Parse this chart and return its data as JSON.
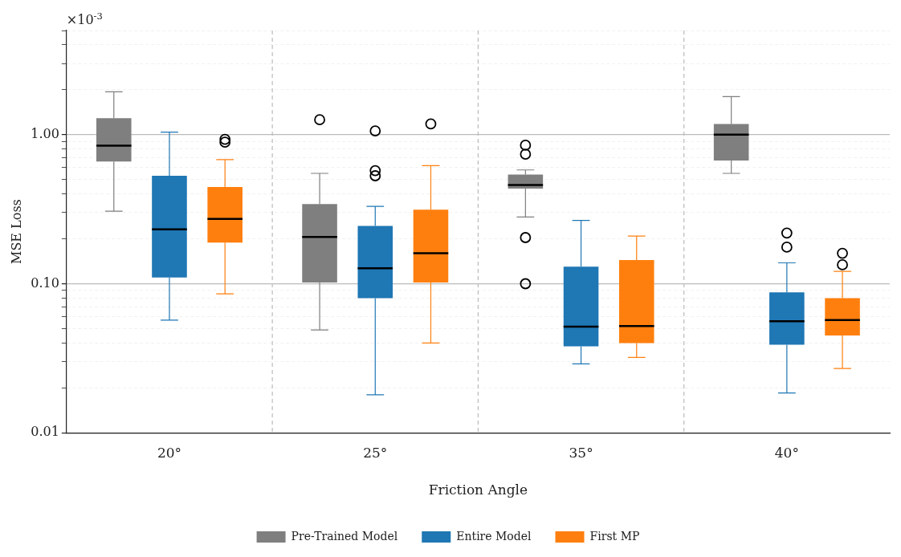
{
  "chart_data": {
    "type": "box",
    "xlabel": "Friction Angle",
    "ylabel": "MSE Loss",
    "annotations": [
      "×10$^{-3}$"
    ],
    "categories": [
      "20°",
      "25°",
      "35°",
      "40°"
    ],
    "log": "y",
    "ylim": [
      0.01,
      5
    ],
    "yticks": [
      {
        "value": 0.01,
        "label": "0.01"
      },
      {
        "value": 0.02,
        "label": null
      },
      {
        "value": 0.03,
        "label": null
      },
      {
        "value": 0.04,
        "label": null
      },
      {
        "value": 0.05,
        "label": null
      },
      {
        "value": 0.06,
        "label": null
      },
      {
        "value": 0.07,
        "label": null
      },
      {
        "value": 0.08,
        "label": null
      },
      {
        "value": 0.09,
        "label": null
      },
      {
        "value": 0.1,
        "label": "0.10"
      },
      {
        "value": 0.2,
        "label": null
      },
      {
        "value": 0.3,
        "label": null
      },
      {
        "value": 0.4,
        "label": null
      },
      {
        "value": 0.5,
        "label": null
      },
      {
        "value": 0.6,
        "label": null
      },
      {
        "value": 0.7,
        "label": null
      },
      {
        "value": 0.8,
        "label": null
      },
      {
        "value": 0.9,
        "label": null
      },
      {
        "value": 1,
        "label": "1.00"
      },
      {
        "value": 2,
        "label": null
      },
      {
        "value": 3,
        "label": null
      },
      {
        "value": 4,
        "label": null
      },
      {
        "value": 5,
        "label": null
      }
    ],
    "grid": "y",
    "legend": "bottom",
    "series": [
      {
        "name": "Pre-Trained Model",
        "color": "#7f7f7f",
        "boxes": [
          {
            "low": 0.307,
            "q1": 0.66,
            "median": 0.845,
            "q3": 1.29,
            "high": 1.94
          },
          {
            "low": 0.049,
            "q1": 0.102,
            "median": 0.206,
            "q3": 0.342,
            "high": 0.55,
            "outliers": [
              1.26
            ]
          },
          {
            "low": 0.28,
            "q1": 0.435,
            "median": 0.46,
            "q3": 0.54,
            "high": 0.58,
            "outliers": [
              0.85,
              0.74,
              0.204,
              0.1
            ]
          },
          {
            "low": 0.55,
            "q1": 0.67,
            "median": 1.0,
            "q3": 1.18,
            "high": 1.8
          }
        ]
      },
      {
        "name": "Entire Model",
        "color": "#1f77b4",
        "boxes": [
          {
            "low": 0.057,
            "q1": 0.11,
            "median": 0.232,
            "q3": 0.53,
            "high": 1.04
          },
          {
            "low": 0.018,
            "q1": 0.08,
            "median": 0.127,
            "q3": 0.244,
            "high": 0.33,
            "outliers": [
              1.06,
              0.574,
              0.53
            ]
          },
          {
            "low": 0.029,
            "q1": 0.038,
            "median": 0.0515,
            "q3": 0.13,
            "high": 0.266
          },
          {
            "low": 0.0185,
            "q1": 0.039,
            "median": 0.056,
            "q3": 0.0875,
            "high": 0.138,
            "outliers": [
              0.219,
              0.176
            ]
          }
        ]
      },
      {
        "name": "First MP",
        "color": "#ff7f0e",
        "boxes": [
          {
            "low": 0.0855,
            "q1": 0.189,
            "median": 0.272,
            "q3": 0.446,
            "high": 0.68,
            "outliers": [
              0.93,
              0.89
            ]
          },
          {
            "low": 0.04,
            "q1": 0.102,
            "median": 0.16,
            "q3": 0.314,
            "high": 0.62,
            "outliers": [
              1.18
            ]
          },
          {
            "low": 0.032,
            "q1": 0.04,
            "median": 0.052,
            "q3": 0.144,
            "high": 0.209
          },
          {
            "low": 0.027,
            "q1": 0.045,
            "median": 0.057,
            "q3": 0.08,
            "high": 0.121,
            "outliers": [
              0.16,
              0.134
            ]
          }
        ]
      }
    ]
  }
}
